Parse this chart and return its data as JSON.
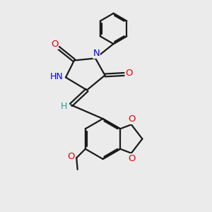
{
  "background_color": "#ebebeb",
  "bond_color": "#1a1a1a",
  "nitrogen_color": "#0000ee",
  "oxygen_color": "#ee0000",
  "hydrogen_color": "#2a9d8f",
  "line_width": 1.6,
  "figsize": [
    3.0,
    3.0
  ],
  "dpi": 100,
  "xlim": [
    0,
    10
  ],
  "ylim": [
    0,
    10
  ]
}
